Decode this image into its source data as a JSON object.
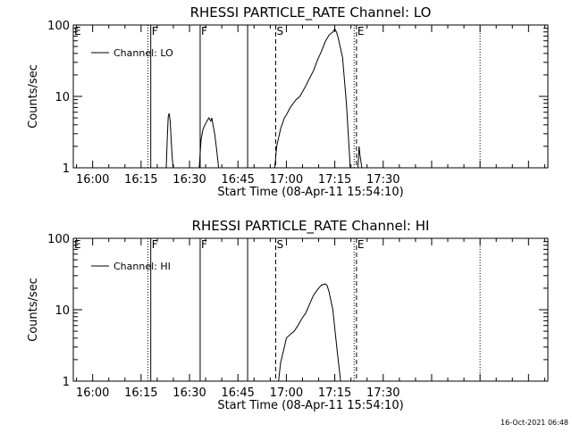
{
  "timestamp": "16-Oct-2021 06:48",
  "chart_data": [
    {
      "type": "line",
      "title": "RHESSI PARTICLE_RATE Channel: LO",
      "xlabel": "Start Time (08-Apr-11 15:54:10)",
      "ylabel": "Counts/sec",
      "yscale": "log",
      "ylim": [
        1,
        100
      ],
      "xlim_minutes": [
        15.9,
        18.35
      ],
      "xtick_labels": [
        "16:00",
        "16:15",
        "16:30",
        "16:45",
        "17:00",
        "17:15",
        "17:30"
      ],
      "ytick_labels": [
        "1",
        "10",
        "100"
      ],
      "legend": "Channel: LO",
      "legend_position": "upper-left",
      "markers": [
        {
          "label": "E",
          "x": 15.9,
          "style": "none"
        },
        {
          "label": "",
          "x": 16.285,
          "style": "dotted"
        },
        {
          "label": "F",
          "x": 16.3,
          "style": "solid"
        },
        {
          "label": "F",
          "x": 16.555,
          "style": "solid"
        },
        {
          "label": "",
          "x": 16.8,
          "style": "solid"
        },
        {
          "label": "S",
          "x": 16.945,
          "style": "dashed"
        },
        {
          "label": "",
          "x": 17.35,
          "style": "dotted"
        },
        {
          "label": "E",
          "x": 17.362,
          "style": "dashed"
        },
        {
          "label": "",
          "x": 18.0,
          "style": "dotted"
        }
      ],
      "series": [
        {
          "name": "Channel: LO",
          "segments": [
            [
              [
                16.38,
                1
              ],
              [
                16.385,
                2.5
              ],
              [
                16.39,
                5.2
              ],
              [
                16.395,
                5.8
              ],
              [
                16.4,
                4.5
              ],
              [
                16.405,
                2.5
              ],
              [
                16.41,
                1.5
              ],
              [
                16.415,
                1
              ]
            ],
            [
              [
                16.55,
                1
              ],
              [
                16.56,
                2.5
              ],
              [
                16.57,
                3.5
              ],
              [
                16.58,
                4
              ],
              [
                16.59,
                4.5
              ],
              [
                16.6,
                5
              ],
              [
                16.61,
                4.5
              ],
              [
                16.615,
                5
              ],
              [
                16.62,
                4.2
              ],
              [
                16.63,
                3
              ],
              [
                16.64,
                1.8
              ],
              [
                16.65,
                1
              ]
            ],
            [
              [
                16.94,
                1
              ],
              [
                16.95,
                2
              ],
              [
                16.97,
                3.5
              ],
              [
                16.99,
                5
              ],
              [
                17.0,
                5.5
              ],
              [
                17.02,
                7
              ],
              [
                17.05,
                9
              ],
              [
                17.07,
                10
              ],
              [
                17.1,
                14
              ],
              [
                17.12,
                18
              ],
              [
                17.14,
                23
              ],
              [
                17.16,
                32
              ],
              [
                17.18,
                42
              ],
              [
                17.2,
                58
              ],
              [
                17.22,
                72
              ],
              [
                17.24,
                80
              ],
              [
                17.25,
                88
              ],
              [
                17.26,
                78
              ],
              [
                17.27,
                62
              ],
              [
                17.29,
                35
              ],
              [
                17.31,
                8
              ],
              [
                17.33,
                1
              ]
            ],
            [
              [
                17.37,
                1
              ],
              [
                17.375,
                2
              ],
              [
                17.38,
                1.5
              ],
              [
                17.385,
                1.2
              ],
              [
                17.39,
                1
              ]
            ]
          ]
        }
      ]
    },
    {
      "type": "line",
      "title": "RHESSI PARTICLE_RATE Channel: HI",
      "xlabel": "Start Time (08-Apr-11 15:54:10)",
      "ylabel": "Counts/sec",
      "yscale": "log",
      "ylim": [
        1,
        100
      ],
      "xlim_minutes": [
        15.9,
        18.35
      ],
      "xtick_labels": [
        "16:00",
        "16:15",
        "16:30",
        "16:45",
        "17:00",
        "17:15",
        "17:30"
      ],
      "ytick_labels": [
        "1",
        "10",
        "100"
      ],
      "legend": "Channel: HI",
      "legend_position": "upper-left",
      "markers": [
        {
          "label": "E",
          "x": 15.9,
          "style": "none"
        },
        {
          "label": "",
          "x": 16.285,
          "style": "dotted"
        },
        {
          "label": "F",
          "x": 16.3,
          "style": "solid"
        },
        {
          "label": "F",
          "x": 16.555,
          "style": "solid"
        },
        {
          "label": "",
          "x": 16.8,
          "style": "solid"
        },
        {
          "label": "S",
          "x": 16.945,
          "style": "dashed"
        },
        {
          "label": "",
          "x": 17.35,
          "style": "dotted"
        },
        {
          "label": "E",
          "x": 17.362,
          "style": "dashed"
        },
        {
          "label": "",
          "x": 18.0,
          "style": "dotted"
        }
      ],
      "series": [
        {
          "name": "Channel: HI",
          "segments": [
            [
              [
                16.96,
                1
              ],
              [
                16.97,
                1.8
              ],
              [
                16.99,
                3
              ],
              [
                17.0,
                4
              ],
              [
                17.02,
                4.5
              ],
              [
                17.04,
                5
              ],
              [
                17.06,
                6
              ],
              [
                17.08,
                7.5
              ],
              [
                17.1,
                9
              ],
              [
                17.12,
                12
              ],
              [
                17.14,
                16
              ],
              [
                17.16,
                19
              ],
              [
                17.18,
                22
              ],
              [
                17.2,
                23
              ],
              [
                17.21,
                22
              ],
              [
                17.22,
                18
              ],
              [
                17.24,
                10
              ],
              [
                17.26,
                3
              ],
              [
                17.28,
                1
              ]
            ]
          ]
        }
      ]
    }
  ]
}
